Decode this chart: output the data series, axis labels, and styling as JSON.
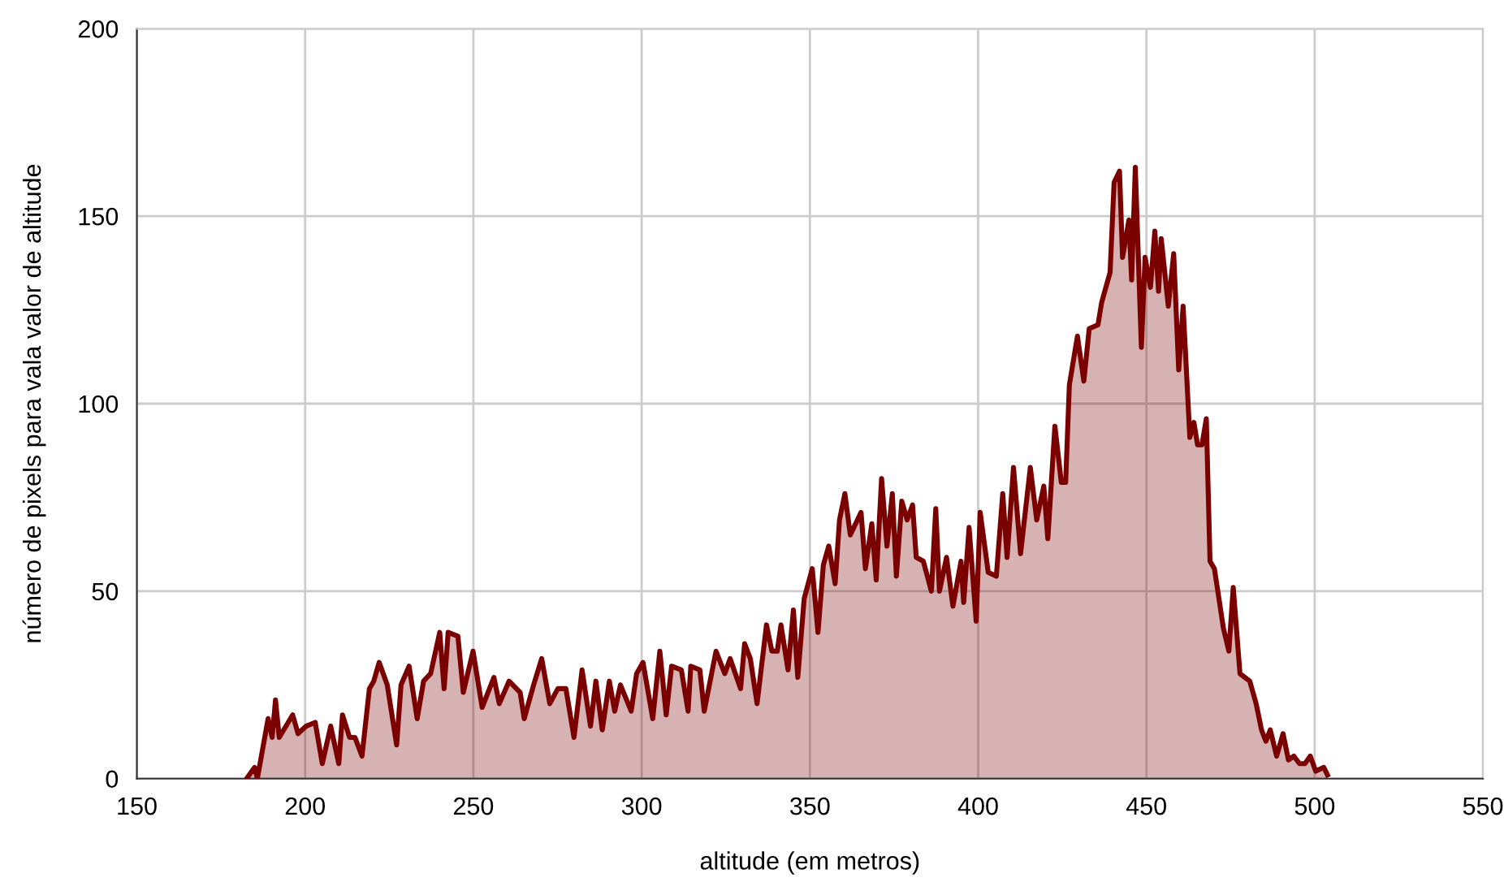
{
  "chart_data": {
    "type": "area",
    "xlabel": "altitude (em metros)",
    "ylabel": "número de pixels para vala valor de altitude",
    "xlim": [
      150,
      550
    ],
    "xticks": [
      150,
      200,
      250,
      300,
      350,
      400,
      450,
      500,
      550
    ],
    "ylim": [
      0,
      200
    ],
    "yticks": [
      0,
      50,
      100,
      150,
      200
    ],
    "grid": true,
    "legend": false,
    "marker": "none",
    "line_style": "solid",
    "series": [
      {
        "color": "#7b0000",
        "x": [
          182.6,
          185,
          185.8,
          189,
          190.2,
          191.2,
          192.3,
          196.3,
          197.9,
          200.3,
          203,
          205.1,
          207.6,
          210,
          211.1,
          213.2,
          214.8,
          216.9,
          219.1,
          220.4,
          222,
          224.4,
          227.2,
          228.5,
          230.9,
          233.3,
          235.2,
          237.3,
          240,
          241.3,
          242.5,
          245.4,
          247,
          249.9,
          252.6,
          256.1,
          257.7,
          260.6,
          263.9,
          265.1,
          267.9,
          270.3,
          272.7,
          275.1,
          277.5,
          279.9,
          282.3,
          284.8,
          286.4,
          288.3,
          290.4,
          292,
          293.7,
          296.9,
          298.5,
          300.4,
          303.3,
          305.4,
          307.3,
          308.9,
          311.8,
          313.8,
          314.6,
          317.3,
          318.6,
          322.1,
          324.7,
          326.3,
          329.4,
          330.6,
          332.3,
          334.3,
          337.1,
          338.7,
          340.3,
          341.4,
          343.5,
          345.1,
          346.4,
          348.3,
          350.7,
          352.4,
          354,
          355.6,
          357.5,
          358.8,
          360.4,
          362,
          363.6,
          365.2,
          366.5,
          368.4,
          369.7,
          371.3,
          372.9,
          374.5,
          375.7,
          377.3,
          378.9,
          380.5,
          381.6,
          383.7,
          386.1,
          387.4,
          388.5,
          390.6,
          392.5,
          394.9,
          395.7,
          397.3,
          399.4,
          400.6,
          403,
          405.4,
          407.3,
          408.6,
          410.5,
          412.6,
          415.5,
          417.4,
          419.5,
          420.7,
          422.8,
          424.7,
          426,
          427.1,
          429.5,
          431.4,
          433,
          435.6,
          436.7,
          439.2,
          440.4,
          442,
          442.9,
          444.8,
          445.6,
          446.7,
          448.5,
          449.6,
          451.2,
          452.5,
          453.6,
          454.4,
          456.5,
          458.1,
          459.6,
          460.9,
          462.9,
          464.1,
          465.2,
          466.5,
          467.8,
          468.9,
          470.2,
          472.9,
          474.5,
          475.8,
          477.8,
          480.7,
          482.6,
          484.2,
          485.5,
          486.8,
          488.7,
          490.6,
          492.2,
          493.8,
          495.5,
          497.1,
          498.7,
          500.3,
          502.7,
          503.8
        ],
        "values": [
          0,
          3,
          0,
          16,
          11,
          21,
          11,
          17,
          12,
          14,
          15,
          4,
          14,
          4,
          17,
          11,
          11,
          6,
          24,
          26,
          31,
          25,
          9,
          25,
          30,
          16,
          26,
          28,
          39,
          24,
          39,
          38,
          23,
          34,
          19,
          27,
          20,
          26,
          23,
          16,
          25,
          32,
          20,
          24,
          24,
          11,
          29,
          14,
          26,
          13,
          26,
          18,
          25,
          18,
          28,
          31,
          16,
          34,
          17,
          30,
          29,
          18,
          30,
          29,
          18,
          34,
          28,
          32,
          24,
          36,
          32,
          20,
          41,
          34,
          34,
          41,
          29,
          45,
          27,
          48,
          56,
          39,
          57,
          62,
          52,
          69,
          76,
          65,
          68,
          71,
          56,
          68,
          53,
          80,
          62,
          76,
          54,
          74,
          69,
          73,
          59,
          58,
          50,
          72,
          50,
          59,
          46,
          58,
          47,
          67,
          42,
          71,
          55,
          54,
          76,
          59,
          83,
          60,
          83,
          69,
          78,
          64,
          94,
          79,
          79,
          105,
          118,
          106,
          120,
          121,
          127,
          135,
          159,
          162,
          139,
          149,
          133,
          163,
          115,
          139,
          131,
          146,
          130,
          144,
          126,
          140,
          109,
          126,
          91,
          95,
          89,
          89,
          96,
          58,
          56,
          40,
          34,
          51,
          28,
          26,
          20,
          13,
          10,
          13,
          6,
          12,
          5,
          6,
          4,
          4,
          6,
          2,
          3,
          1
        ]
      }
    ]
  }
}
